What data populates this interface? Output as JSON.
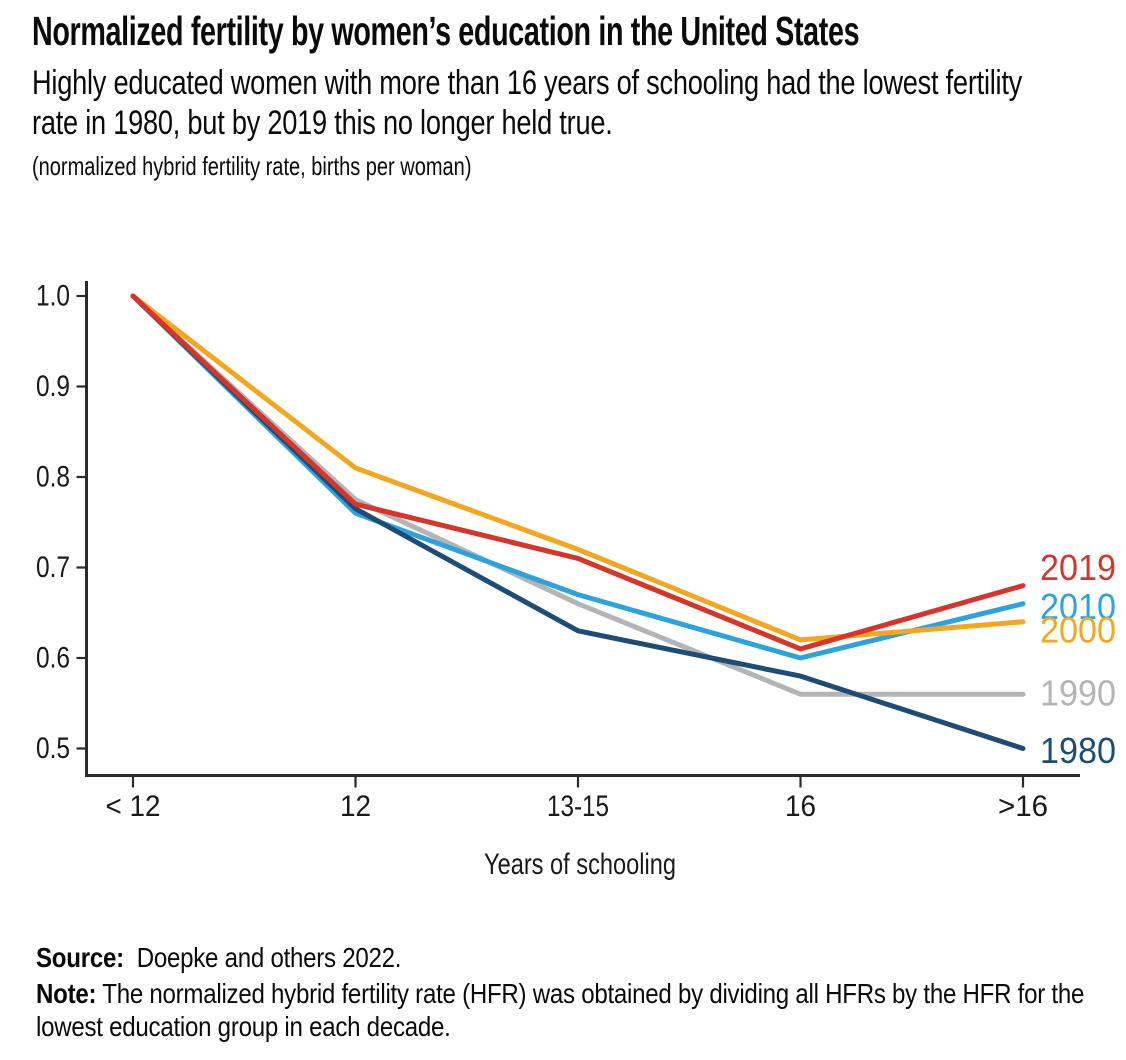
{
  "chart_data": {
    "type": "line",
    "title": "Normalized fertility by women’s education in the United States",
    "subtitle": "Highly educated women with more than 16 years of schooling had the lowest fertility rate in 1980, but by 2019 this no longer held true.",
    "unit_label": "(normalized hybrid fertility rate, births per woman)",
    "xlabel": "Years of schooling",
    "categories": [
      "< 12",
      "12",
      "13-15",
      "16",
      ">16"
    ],
    "ylim": [
      0.5,
      1.0
    ],
    "yticks": [
      "1.0",
      "0.9",
      "0.8",
      "0.7",
      "0.6",
      "0.5"
    ],
    "grid": false,
    "legend_position": "line-end-labels-right",
    "axis_color": "#2b2a28",
    "tick_label_color": "#1a1a1a",
    "series": [
      {
        "name": "2019",
        "color": "#d7352b",
        "values": [
          1.0,
          0.77,
          0.71,
          0.61,
          0.68
        ]
      },
      {
        "name": "2010",
        "color": "#2ca3dd",
        "values": [
          1.0,
          0.76,
          0.67,
          0.6,
          0.66
        ]
      },
      {
        "name": "2000",
        "color": "#f4a61f",
        "values": [
          1.0,
          0.81,
          0.72,
          0.62,
          0.64
        ]
      },
      {
        "name": "1990",
        "color": "#b4b4b4",
        "values": [
          1.0,
          0.775,
          0.66,
          0.56,
          0.56
        ]
      },
      {
        "name": "1980",
        "color": "#1d4d76",
        "values": [
          1.0,
          0.765,
          0.63,
          0.58,
          0.5
        ]
      }
    ]
  },
  "footer": {
    "source_label": "Source:",
    "source_text": "Doepke and others 2022.",
    "note_label": "Note:",
    "note_text": "The normalized hybrid fertility rate (HFR) was obtained by dividing all HFRs by the HFR for the lowest education group in each decade."
  }
}
